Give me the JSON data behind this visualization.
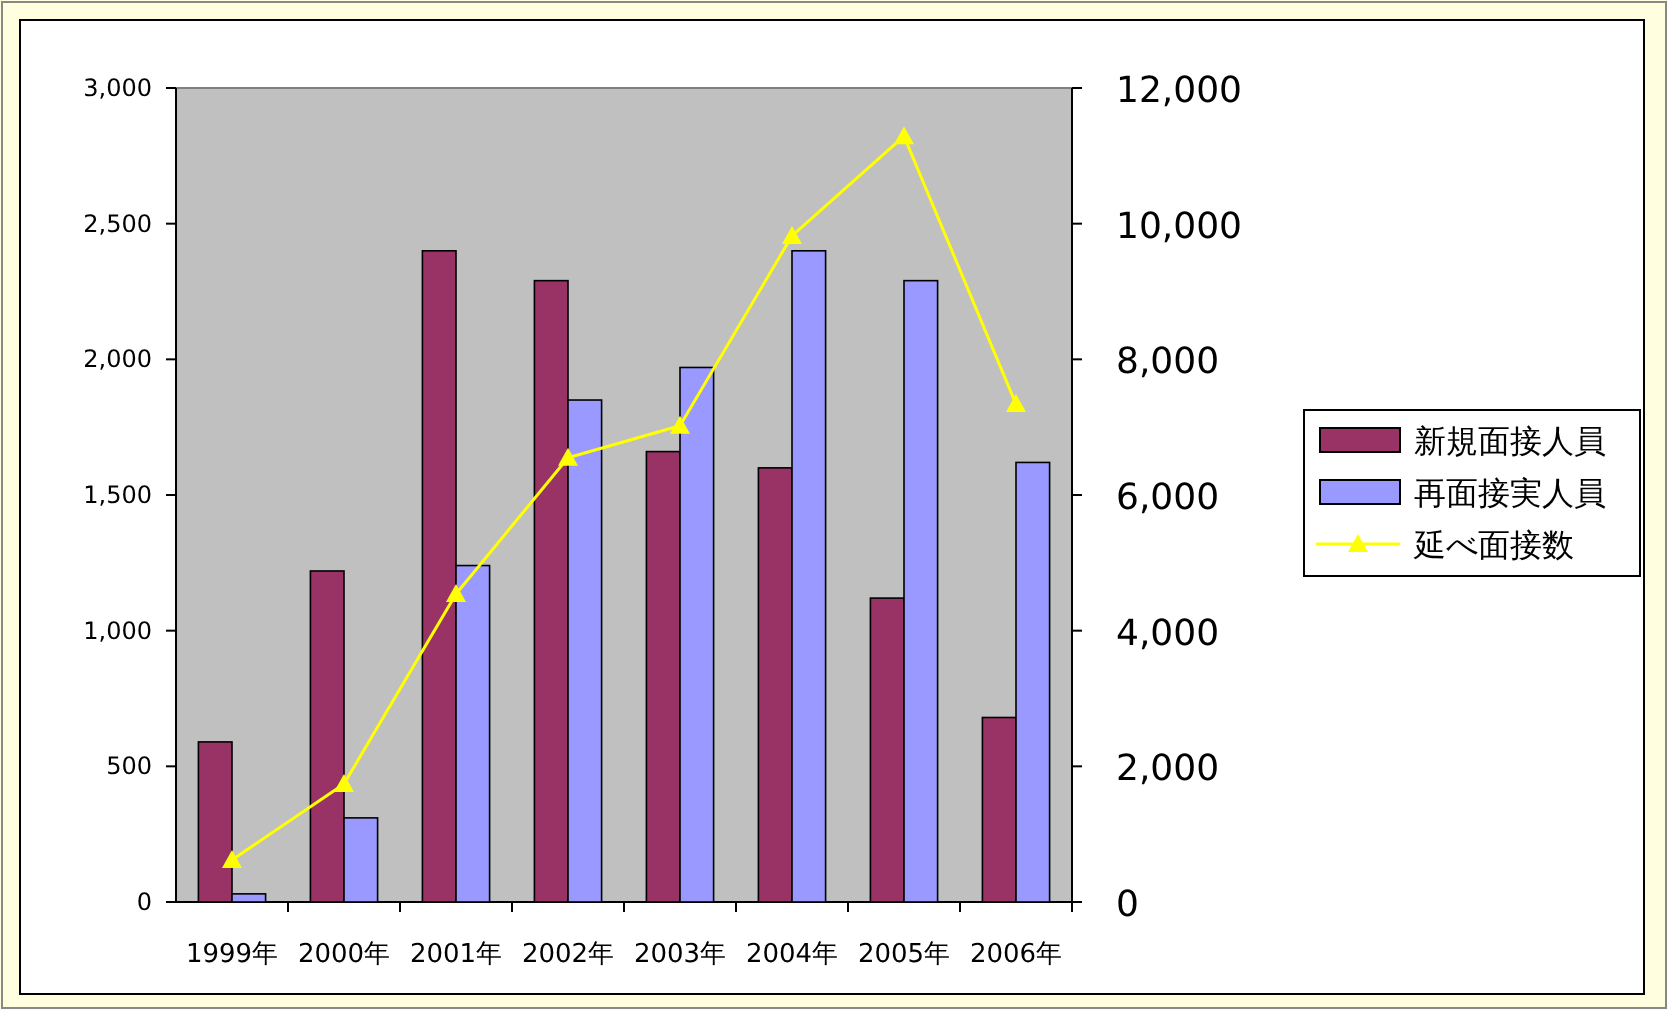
{
  "chart_data": {
    "type": "bar",
    "categories": [
      "1999年",
      "2000年",
      "2001年",
      "2002年",
      "2003年",
      "2004年",
      "2005年",
      "2006年"
    ],
    "series": [
      {
        "name": "新規面接人員",
        "color": "#993366",
        "values": [
          590,
          1220,
          2400,
          2290,
          1660,
          1600,
          1120,
          680
        ]
      },
      {
        "name": "再面接実人員",
        "color": "#9999ff",
        "values": [
          30,
          310,
          1240,
          1850,
          1970,
          2400,
          2290,
          1620
        ]
      },
      {
        "name": "延べ面接数",
        "type": "line",
        "axis": "y2",
        "marker": "triangle",
        "color": "#ffff00",
        "values": [
          620,
          1740,
          4540,
          6550,
          7020,
          9820,
          11290,
          7340
        ]
      }
    ],
    "ylim": [
      0,
      3000
    ],
    "yticks": [
      0,
      {
        "value": 500,
        "label": "500"
      },
      {
        "value": 1000,
        "label": "1,000"
      },
      {
        "value": 1500,
        "label": "1,500"
      },
      {
        "value": 2000,
        "label": "2,000"
      },
      {
        "value": 2500,
        "label": "2,500"
      },
      {
        "value": 3000,
        "label": "3,000"
      }
    ],
    "y2lim": [
      0,
      12000
    ],
    "y2ticks": [
      0,
      {
        "value": 2000,
        "label": "2,000"
      },
      {
        "value": 4000,
        "label": "4,000"
      },
      {
        "value": 6000,
        "label": "6,000"
      },
      {
        "value": 8000,
        "label": "8,000"
      },
      {
        "value": 10000,
        "label": "10,000"
      },
      {
        "value": 12000,
        "label": "12,000"
      }
    ],
    "grid": false,
    "legend": "right"
  }
}
